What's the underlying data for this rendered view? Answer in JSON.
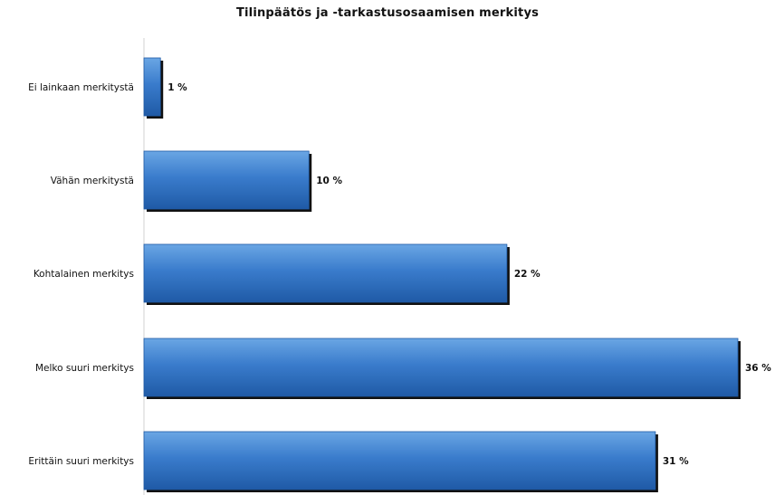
{
  "chart_data": {
    "type": "bar",
    "orientation": "horizontal",
    "title": "Tilinpäätös ja -tarkastusosaamisen merkitys",
    "categories": [
      "Ei lainkaan merkitystä",
      "Vähän merkitystä",
      "Kohtalainen merkitys",
      "Melko suuri merkitys",
      "Erittäin suuri merkitys"
    ],
    "values": [
      1,
      10,
      22,
      36,
      31
    ],
    "value_labels": [
      "1 %",
      "10 %",
      "22 %",
      "36 %",
      "31 %"
    ],
    "unit": "%",
    "xlim": [
      0,
      36
    ],
    "grid": false,
    "legend": "none",
    "colors": {
      "bar": "#3a7ccc",
      "bar_light": "#6aa6e4",
      "bar_dark": "#1f5aa6",
      "shadow": "#111111",
      "axis": "#d0d0d0"
    }
  }
}
